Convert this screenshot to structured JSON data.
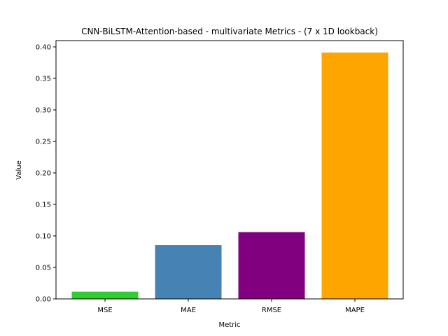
{
  "chart_data": {
    "type": "bar",
    "title": "CNN-BiLSTM-Attention-based - multivariate Metrics - (7 x 1D lookback)",
    "xlabel": "Metric",
    "ylabel": "Value",
    "categories": [
      "MSE",
      "MAE",
      "RMSE",
      "MAPE"
    ],
    "values": [
      0.0115,
      0.0855,
      0.106,
      0.391
    ],
    "colors": [
      "#32CD32",
      "#4682B4",
      "#800080",
      "#FFA500"
    ],
    "ylim": [
      0,
      0.41
    ],
    "yticks": [
      "0.00",
      "0.05",
      "0.10",
      "0.15",
      "0.20",
      "0.25",
      "0.30",
      "0.35",
      "0.40"
    ],
    "grid": false,
    "legend": "none"
  }
}
